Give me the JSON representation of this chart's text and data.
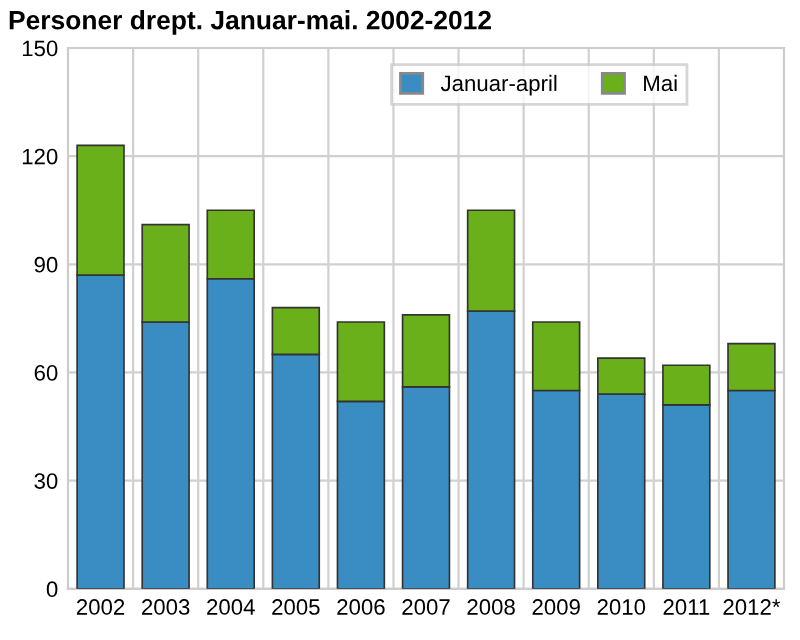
{
  "chart_data": {
    "type": "bar",
    "title": "Personer drept. Januar-mai. 2002-2012",
    "categories": [
      "2002",
      "2003",
      "2004",
      "2005",
      "2006",
      "2007",
      "2008",
      "2009",
      "2010",
      "2011",
      "2012*"
    ],
    "series": [
      {
        "name": "Januar-april",
        "color": "#3a8dc3",
        "values": [
          87,
          74,
          86,
          65,
          52,
          56,
          77,
          55,
          54,
          51,
          55
        ]
      },
      {
        "name": "Mai",
        "color": "#6ab01a",
        "values": [
          36,
          27,
          19,
          13,
          22,
          20,
          28,
          19,
          10,
          11,
          13
        ]
      }
    ],
    "stacked": true,
    "ylim": [
      0,
      150
    ],
    "yticks": [
      0,
      30,
      60,
      90,
      120,
      150
    ],
    "grid": true,
    "legend": "top right"
  }
}
